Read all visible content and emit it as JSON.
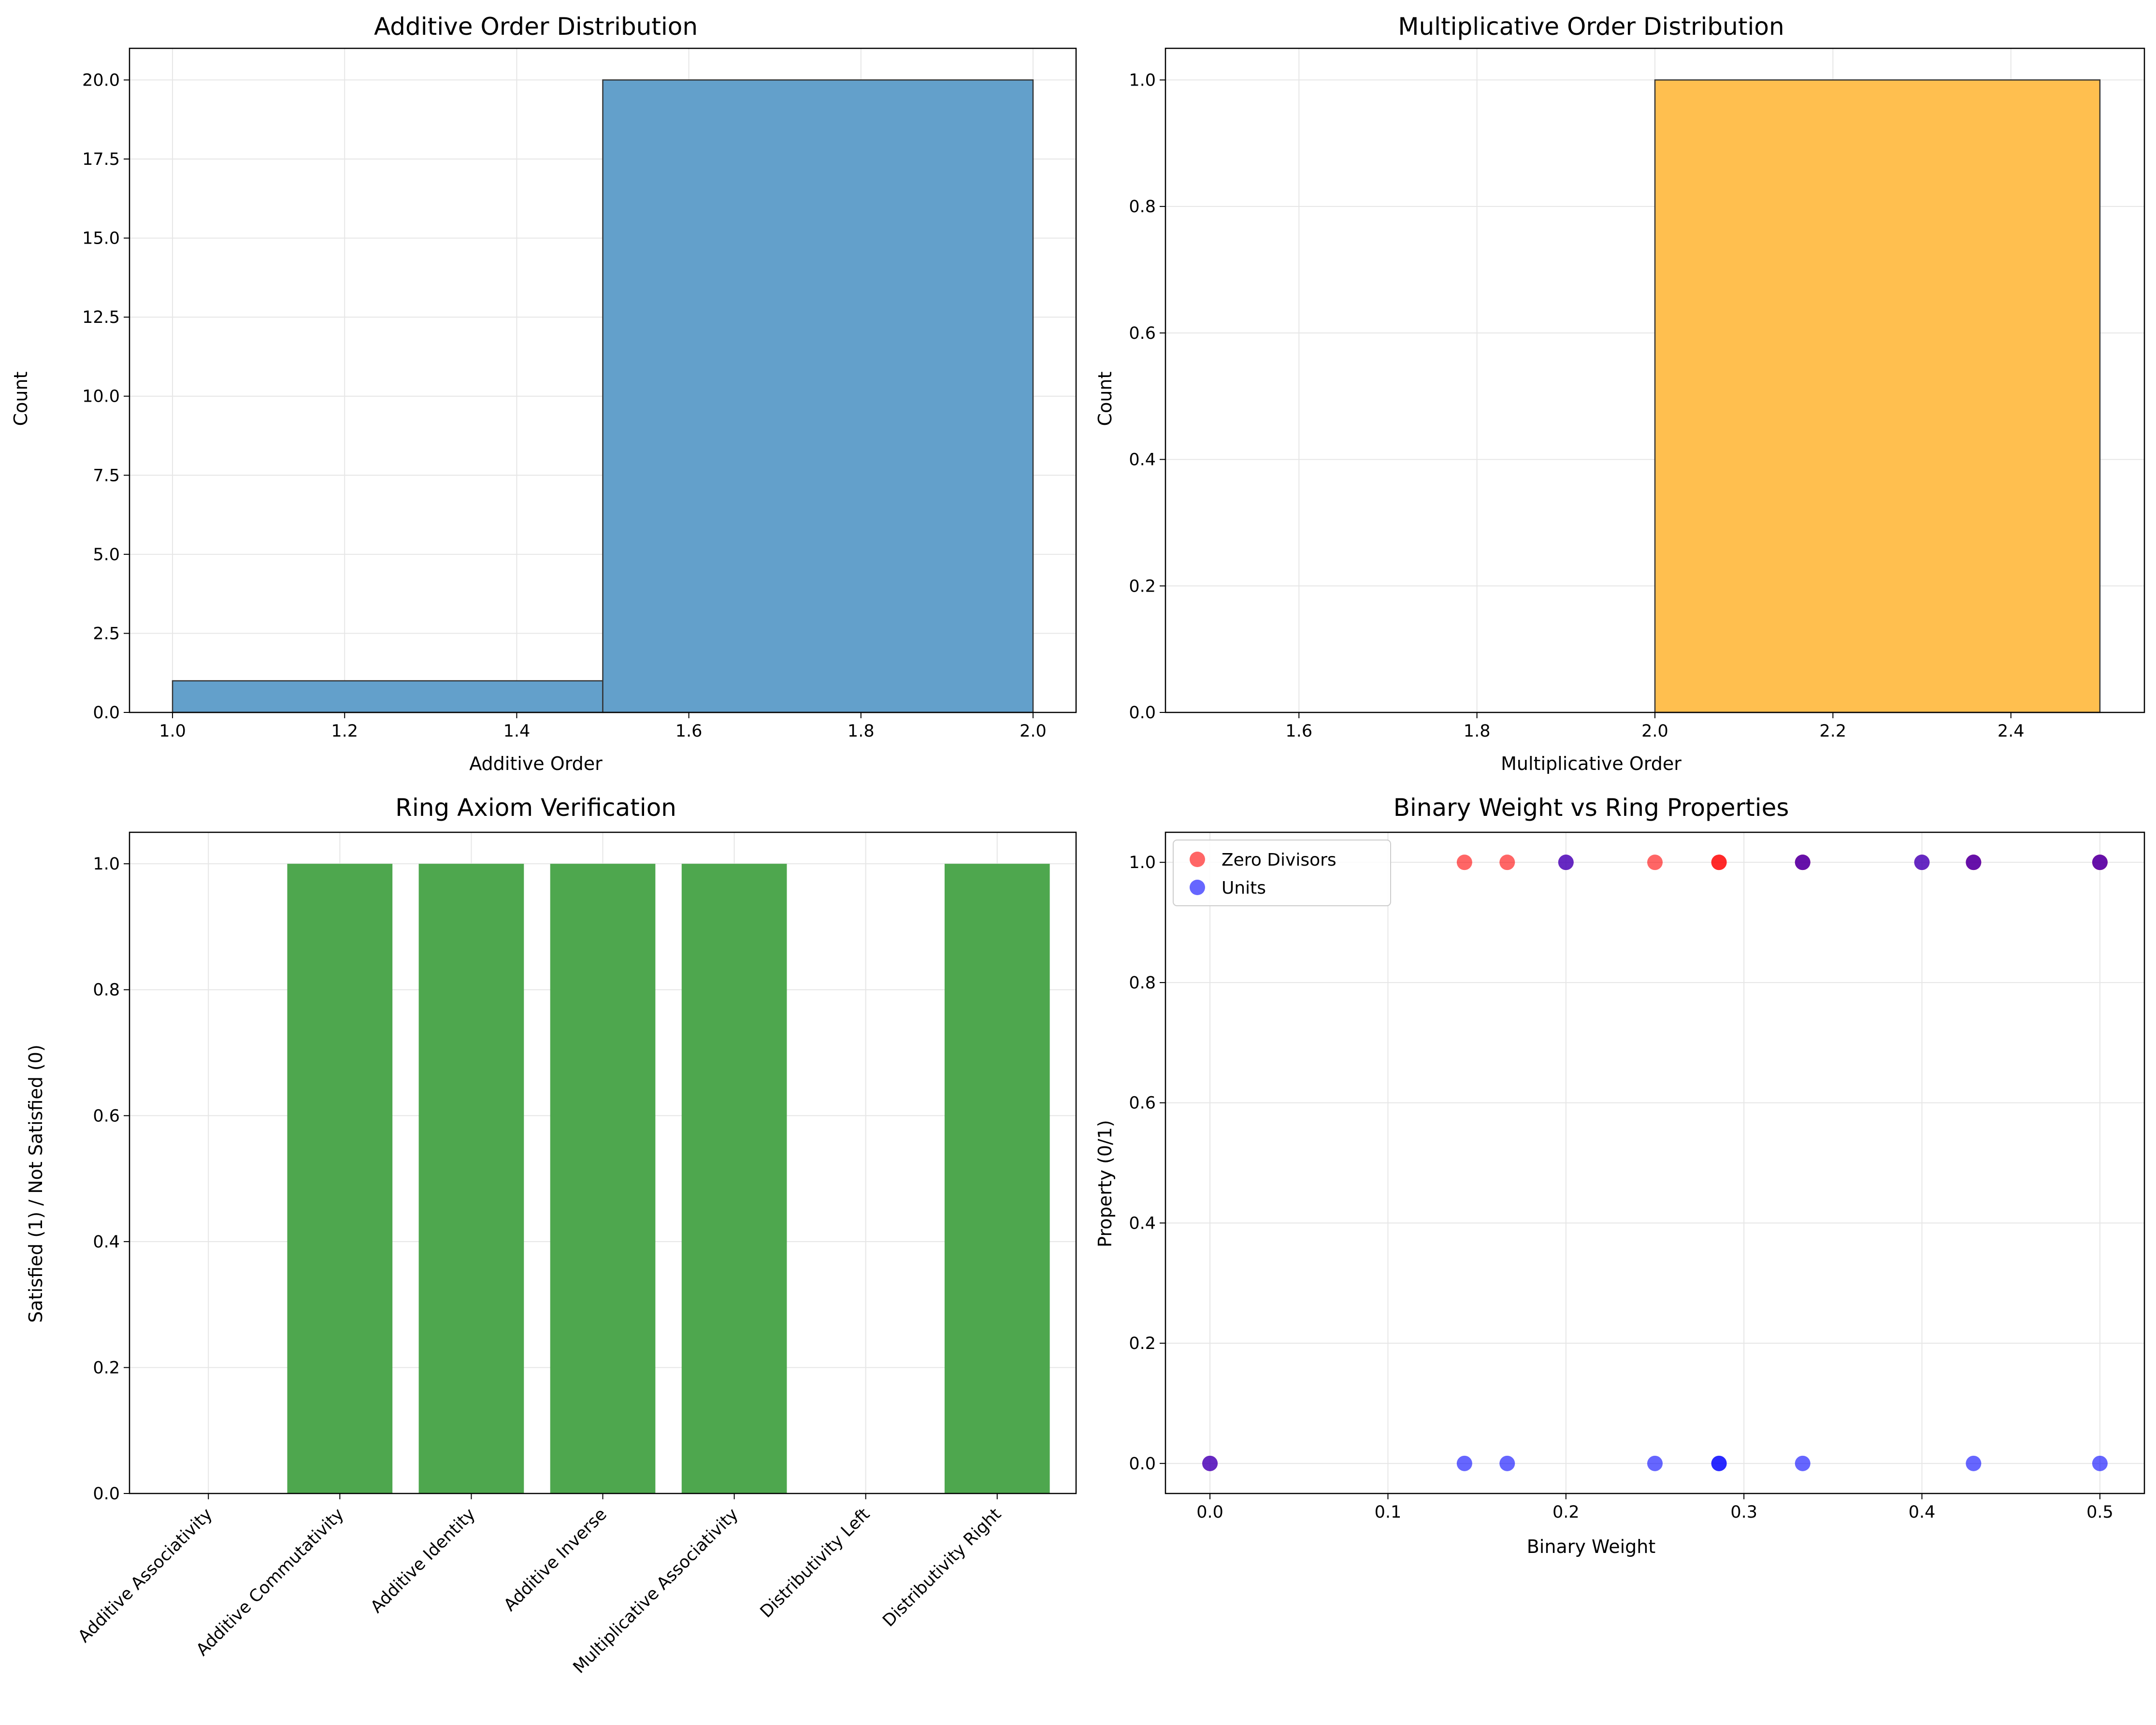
{
  "chart_data": [
    {
      "type": "bar",
      "title": "Additive Order Distribution",
      "xlabel": "Additive Order",
      "ylabel": "Count",
      "xlim": [
        0.95,
        2.05
      ],
      "ylim": [
        0,
        21
      ],
      "xticks": [
        1.0,
        1.2,
        1.4,
        1.6,
        1.8,
        2.0
      ],
      "xtick_labels": [
        "1.0",
        "1.2",
        "1.4",
        "1.6",
        "1.8",
        "2.0"
      ],
      "yticks": [
        0,
        2.5,
        5,
        7.5,
        10,
        12.5,
        15,
        17.5,
        20
      ],
      "ytick_labels": [
        "0.0",
        "2.5",
        "5.0",
        "7.5",
        "10.0",
        "12.5",
        "15.0",
        "17.5",
        "20.0"
      ],
      "bins": [
        {
          "start": 1.0,
          "end": 1.5,
          "count": 1
        },
        {
          "start": 1.5,
          "end": 2.0,
          "count": 20
        }
      ],
      "color": "#63a0cb",
      "grid": true
    },
    {
      "type": "bar",
      "title": "Multiplicative Order Distribution",
      "xlabel": "Multiplicative Order",
      "ylabel": "Count",
      "xlim": [
        1.45,
        2.55
      ],
      "ylim": [
        0,
        1.05
      ],
      "xticks": [
        1.6,
        1.8,
        2.0,
        2.2,
        2.4
      ],
      "xtick_labels": [
        "1.6",
        "1.8",
        "2.0",
        "2.2",
        "2.4"
      ],
      "yticks": [
        0,
        0.2,
        0.4,
        0.6,
        0.8,
        1.0
      ],
      "ytick_labels": [
        "0.0",
        "0.2",
        "0.4",
        "0.6",
        "0.8",
        "1.0"
      ],
      "bins": [
        {
          "start": 1.5,
          "end": 2.0,
          "count": 0
        },
        {
          "start": 2.0,
          "end": 2.5,
          "count": 1
        }
      ],
      "color": "#ffbf4f",
      "grid": true
    },
    {
      "type": "bar",
      "title": "Ring Axiom Verification",
      "xlabel": "",
      "ylabel": "Satisfied (1) / Not Satisfied (0)",
      "ylim": [
        0,
        1.05
      ],
      "yticks": [
        0,
        0.2,
        0.4,
        0.6,
        0.8,
        1.0
      ],
      "ytick_labels": [
        "0.0",
        "0.2",
        "0.4",
        "0.6",
        "0.8",
        "1.0"
      ],
      "categories": [
        "Additive Associativity",
        "Additive Commutativity",
        "Additive Identity",
        "Additive Inverse",
        "Multiplicative Associativity",
        "Distributivity Left",
        "Distributivity Right"
      ],
      "values": [
        0,
        1,
        1,
        1,
        1,
        0,
        1
      ],
      "color": "#4ea74e",
      "grid": true
    },
    {
      "type": "scatter",
      "title": "Binary Weight vs Ring Properties",
      "xlabel": "Binary Weight",
      "ylabel": "Property (0/1)",
      "xlim": [
        -0.025,
        0.525
      ],
      "ylim": [
        -0.05,
        1.05
      ],
      "xticks": [
        0.0,
        0.1,
        0.2,
        0.3,
        0.4,
        0.5
      ],
      "xtick_labels": [
        "0.0",
        "0.1",
        "0.2",
        "0.3",
        "0.4",
        "0.5"
      ],
      "yticks": [
        0,
        0.2,
        0.4,
        0.6,
        0.8,
        1.0
      ],
      "ytick_labels": [
        "0.0",
        "0.2",
        "0.4",
        "0.6",
        "0.8",
        "1.0"
      ],
      "legend_position": "top-left",
      "grid": true,
      "series": [
        {
          "name": "Zero Divisors",
          "color": "#ff0000",
          "x": [
            0.0,
            0.143,
            0.167,
            0.2,
            0.25,
            0.286,
            0.286,
            0.333,
            0.333,
            0.4,
            0.429,
            0.429,
            0.5,
            0.5
          ],
          "y": [
            0,
            1,
            1,
            1,
            1,
            1,
            1,
            1,
            1,
            1,
            1,
            1,
            1,
            1
          ]
        },
        {
          "name": "Units",
          "color": "#0000ff",
          "x": [
            0.0,
            0.143,
            0.167,
            0.2,
            0.25,
            0.286,
            0.286,
            0.333,
            0.333,
            0.4,
            0.429,
            0.429,
            0.5,
            0.5
          ],
          "y": [
            0,
            0,
            0,
            1,
            0,
            0,
            0,
            1,
            0,
            1,
            1,
            0,
            1,
            0
          ]
        }
      ]
    }
  ]
}
